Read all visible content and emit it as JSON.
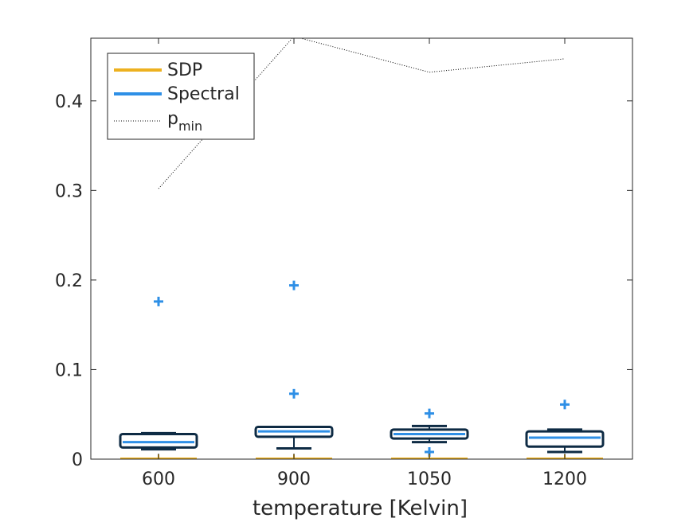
{
  "chart_data": {
    "type": "box",
    "xlabel": "temperature [Kelvin]",
    "ylabel": "",
    "title": "",
    "categories": [
      "600",
      "900",
      "1050",
      "1200"
    ],
    "ylim": [
      0,
      0.47
    ],
    "yticks": [
      0,
      0.1,
      0.2,
      0.3,
      0.4
    ],
    "ytick_labels": [
      "0",
      "0.1",
      "0.2",
      "0.3",
      "0.4"
    ],
    "legend": {
      "position": "top-left",
      "entries": [
        {
          "label": "SDP",
          "style": "solid",
          "color": "#EDB120"
        },
        {
          "label": "Spectral",
          "style": "solid",
          "color": "#2E8FE6"
        },
        {
          "label": "p",
          "subscript": "min",
          "style": "dotted",
          "color": "#000000"
        }
      ]
    },
    "series": [
      {
        "name": "SDP",
        "color": "#EDB120",
        "boxes": [
          {
            "min": 0,
            "q1": 0,
            "median": 0,
            "q3": 0,
            "max": 0
          },
          {
            "min": 0,
            "q1": 0,
            "median": 0,
            "q3": 0,
            "max": 0
          },
          {
            "min": 0,
            "q1": 0,
            "median": 0,
            "q3": 0,
            "max": 0
          },
          {
            "min": 0,
            "q1": 0,
            "median": 0,
            "q3": 0,
            "max": 0
          }
        ]
      },
      {
        "name": "Spectral",
        "color": "#2E8FE6",
        "box_edge_color": "#0E2B44",
        "boxes": [
          {
            "min": 0.011,
            "q1": 0.013,
            "median": 0.019,
            "q3": 0.028,
            "max": 0.029,
            "outliers": [
              0.176
            ]
          },
          {
            "min": 0.012,
            "q1": 0.025,
            "median": 0.031,
            "q3": 0.036,
            "max": 0.036,
            "outliers": [
              0.073,
              0.194
            ]
          },
          {
            "min": 0.019,
            "q1": 0.023,
            "median": 0.028,
            "q3": 0.033,
            "max": 0.037,
            "outliers": [
              0.008,
              0.051
            ]
          },
          {
            "min": 0.008,
            "q1": 0.014,
            "median": 0.024,
            "q3": 0.031,
            "max": 0.033,
            "outliers": [
              0.061
            ]
          }
        ]
      },
      {
        "name": "p_min",
        "color": "#000000",
        "style": "dotted",
        "values": [
          0.302,
          0.472,
          0.432,
          0.447
        ]
      }
    ]
  }
}
